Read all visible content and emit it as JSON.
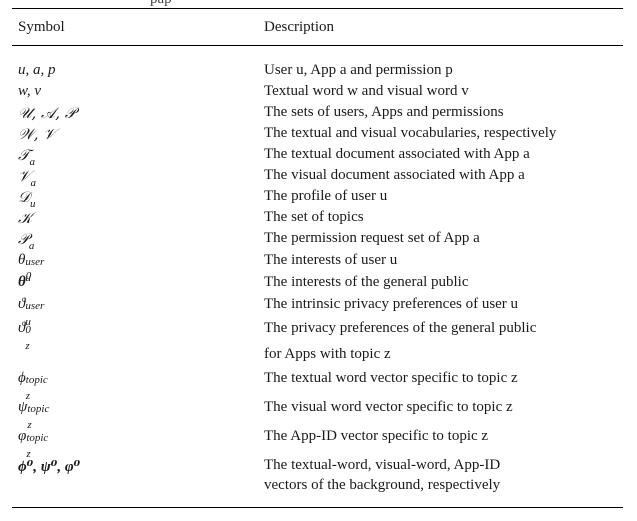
{
  "clipped_top_text": "pap",
  "header": {
    "symbol": "Symbol",
    "description": "Description"
  },
  "rows": [
    {
      "sym": "u, a, p",
      "desc": "User u, App a and permission p"
    },
    {
      "sym": "w, v",
      "desc": "Textual word w and visual word v"
    },
    {
      "sym": "𝒰, 𝒜, 𝒫",
      "desc": "The sets of users, Apps and permissions"
    },
    {
      "sym": "𝒲, 𝒱",
      "desc": "The textual and visual vocabularies, respectively"
    },
    {
      "sym_base": "𝒯",
      "sym_sub": "a",
      "desc": "The textual document associated with App a"
    },
    {
      "sym_base": "𝒱",
      "sym_sub": "a",
      "desc": "The visual document associated with App a"
    },
    {
      "sym_base": "𝒟",
      "sym_sub": "u",
      "desc": "The profile of user u"
    },
    {
      "sym": "𝒦",
      "desc": "The set of topics"
    },
    {
      "sym_base": "𝒫",
      "sym_sub": "a",
      "desc": "The permission request set of App a"
    },
    {
      "sym_base": "θ",
      "sym_sup": "user",
      "sym_sub": "u",
      "desc": "The interests of user u"
    },
    {
      "sym_base": "θ",
      "sym_sup": "0",
      "desc": "The interests of the general public"
    },
    {
      "sym_base": "ϑ",
      "sym_sup": "user",
      "sym_sub": "u",
      "desc": "The intrinsic privacy preferences of user u"
    },
    {
      "sym_base": "ϑ",
      "sym_sup": "0",
      "sym_sub": "z",
      "desc": "The privacy preferences of the general public"
    },
    {
      "desc": "for Apps with topic z"
    },
    {
      "sym_base": "ϕ",
      "sym_sup": "topic",
      "sym_sub": "z",
      "desc": "The textual word vector specific to topic z"
    },
    {
      "sym_base": "ψ",
      "sym_sup": "topic",
      "sym_sub": "z",
      "desc": "The visual word vector specific to topic z"
    },
    {
      "sym_base": "φ",
      "sym_sup": "topic",
      "sym_sub": "z",
      "desc": "The App-ID vector specific to topic z"
    },
    {
      "sym": "ϕ⁰, ψ⁰, φ⁰",
      "desc": "The textual-word, visual-word, App-ID"
    },
    {
      "desc": "vectors of the background, respectively"
    }
  ]
}
